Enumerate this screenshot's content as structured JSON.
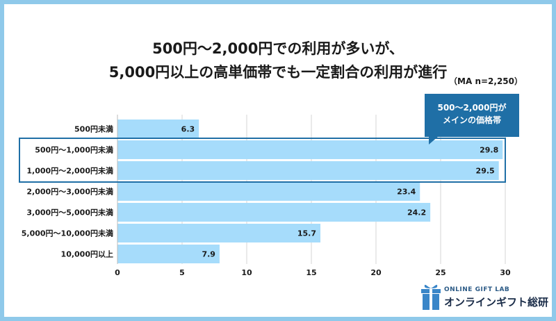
{
  "title_line1": "500円〜2,000円での利用が多いが、",
  "title_line2": "5,000円以上の高単価帯でも一定割合の利用が進行",
  "sample_note": "（MA n=2,250）",
  "callout": {
    "line1": "500〜2,000円が",
    "line2": "メインの価格帯"
  },
  "logo": {
    "en": "ONLINE GIFT LAB",
    "jp": "オンラインギフト総研"
  },
  "colors": {
    "bar": "#a6dcfb",
    "highlight_border": "#1f6fa6",
    "callout": "#1f6fa6",
    "grid": "#d5d5d5"
  },
  "chart_data": {
    "type": "bar",
    "orientation": "horizontal",
    "categories": [
      "500円未満",
      "500円〜1,000円未満",
      "1,000円〜2,000円未満",
      "2,000円〜3,000円未満",
      "3,000円〜5,000円未満",
      "5,000円〜10,000円未満",
      "10,000円以上"
    ],
    "values": [
      6.3,
      29.8,
      29.5,
      23.4,
      24.2,
      15.7,
      7.9
    ],
    "xlim": [
      0,
      30
    ],
    "xticks": [
      0,
      5,
      10,
      15,
      20,
      25,
      30
    ],
    "grid": true,
    "highlighted_categories": [
      "500円〜1,000円未満",
      "1,000円〜2,000円未満"
    ]
  }
}
